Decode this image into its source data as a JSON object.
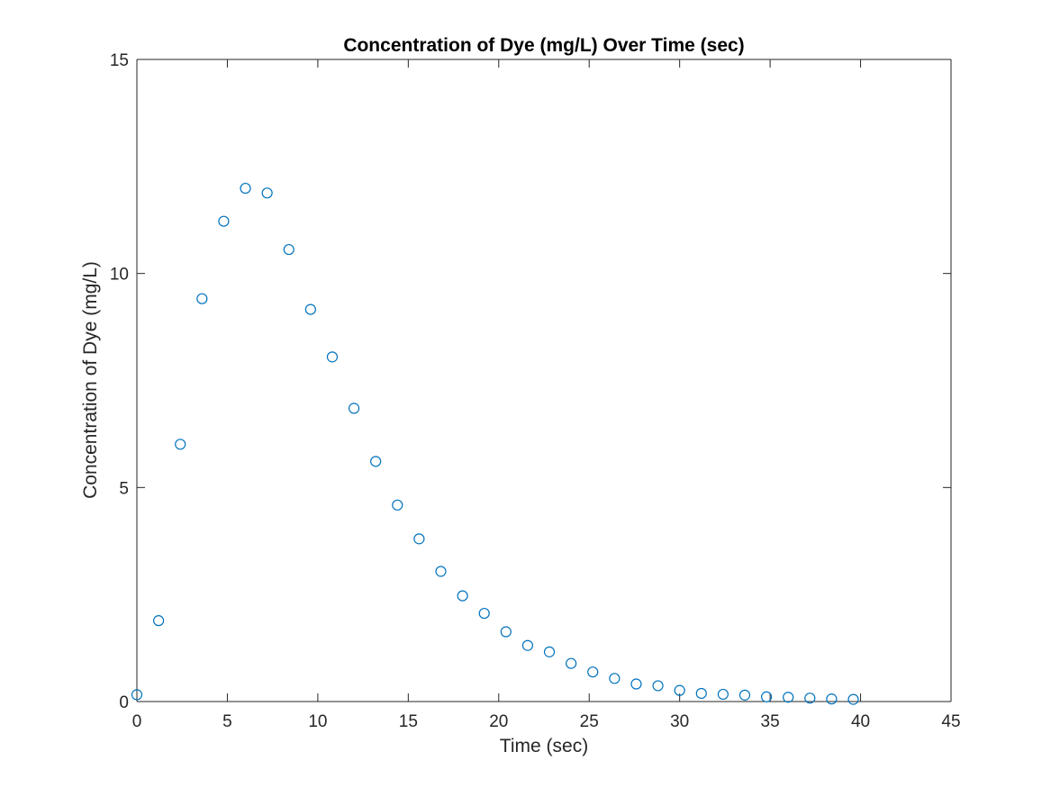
{
  "chart_data": {
    "type": "scatter",
    "title": "Concentration of Dye (mg/L) Over Time (sec)",
    "xlabel": "Time (sec)",
    "ylabel": "Concentration of Dye (mg/L)",
    "xlim": [
      0,
      45
    ],
    "ylim": [
      0,
      15
    ],
    "xticks": [
      0,
      5,
      10,
      15,
      20,
      25,
      30,
      35,
      40,
      45
    ],
    "yticks": [
      0,
      5,
      10,
      15
    ],
    "xtick_labels": [
      "0",
      "5",
      "10",
      "15",
      "20",
      "25",
      "30",
      "35",
      "40",
      "45"
    ],
    "ytick_labels": [
      "0",
      "5",
      "10",
      "15"
    ],
    "grid": false,
    "marker": "open-circle",
    "series": [
      {
        "color": "#0072BD",
        "x": [
          0,
          1.2,
          2.4,
          3.6,
          4.8,
          6.0,
          7.2,
          8.4,
          9.6,
          10.8,
          12.0,
          13.2,
          14.4,
          15.6,
          16.8,
          18.0,
          19.2,
          20.4,
          21.6,
          22.8,
          24.0,
          25.2,
          26.4,
          27.6,
          28.8,
          30.0,
          31.2,
          32.4,
          33.6,
          34.8,
          36.0,
          37.2,
          38.4,
          39.6
        ],
        "y": [
          0.16,
          1.89,
          6.01,
          9.41,
          11.22,
          11.99,
          11.88,
          10.56,
          9.16,
          8.05,
          6.85,
          5.61,
          4.59,
          3.8,
          3.04,
          2.47,
          2.06,
          1.63,
          1.31,
          1.16,
          0.89,
          0.69,
          0.54,
          0.41,
          0.37,
          0.26,
          0.19,
          0.17,
          0.15,
          0.11,
          0.1,
          0.08,
          0.06,
          0.05
        ]
      }
    ]
  }
}
